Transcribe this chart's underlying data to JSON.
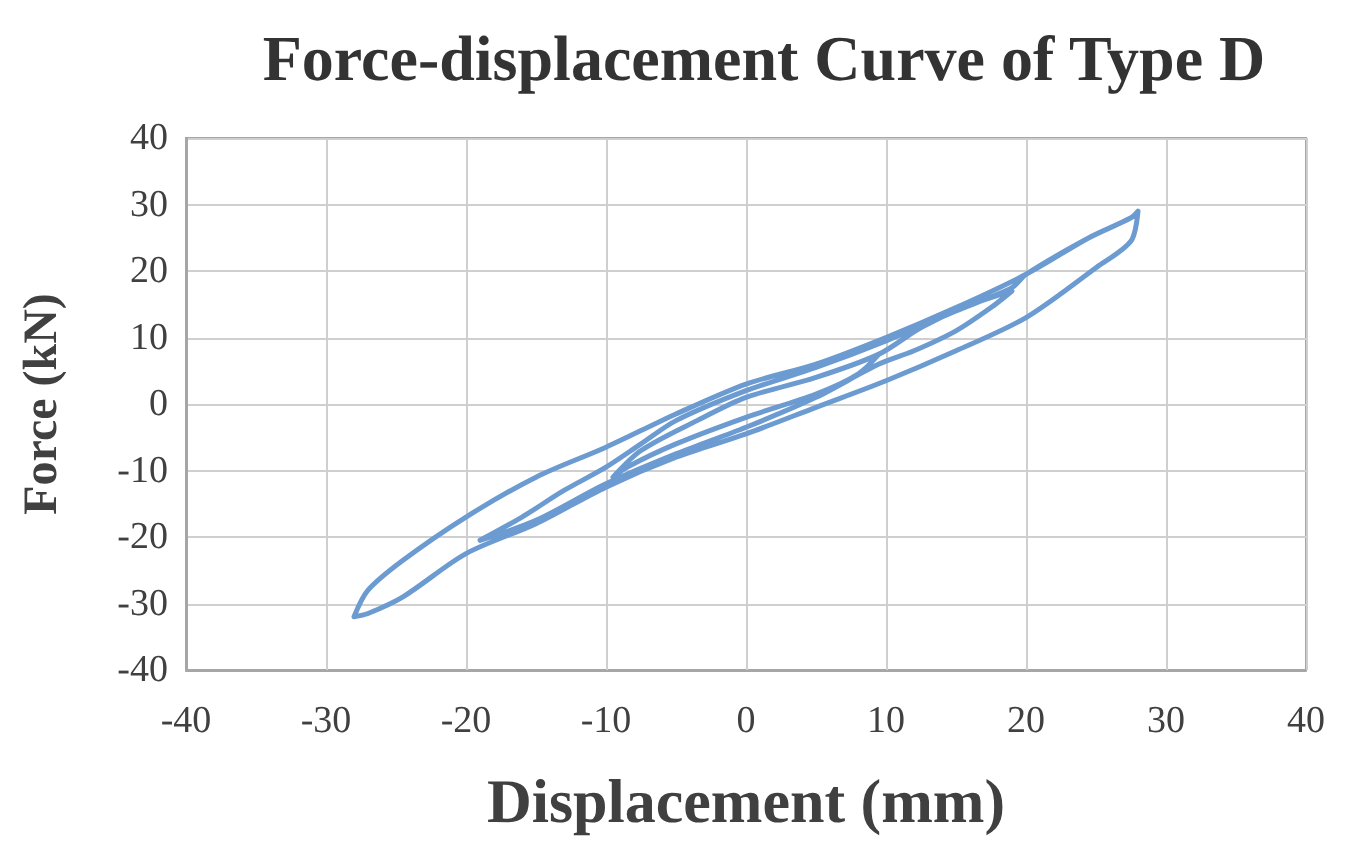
{
  "chart_data": {
    "type": "line",
    "title": "Force-displacement Curve of Type D",
    "xlabel": "Displacement (mm)",
    "ylabel": "Force (kN)",
    "x": [
      9.5,
      8,
      5,
      0,
      -5,
      -8.5,
      -9.5,
      -7.5,
      -3.5,
      0,
      5,
      9.5,
      12.5,
      15.5,
      19,
      17.5,
      15,
      12,
      9.5,
      5,
      0,
      -5,
      -10,
      -15,
      -19,
      -16,
      -13,
      -10,
      -7.5,
      -5,
      0,
      5,
      10,
      15,
      19,
      20,
      24.5,
      27.5,
      28,
      27.5,
      25,
      20,
      15,
      10,
      5,
      0,
      -5,
      -10,
      -15,
      -20,
      -24.5,
      -27,
      -28,
      -27,
      -24.5,
      -20,
      -15,
      -10,
      -5,
      0,
      5,
      10,
      15,
      20,
      24.5,
      27.5,
      28
    ],
    "series": [
      {
        "color": "#6b9bd1",
        "values": [
          7.5,
          4.5,
          1.5,
          -2,
          -6,
          -9.5,
          -11,
          -7,
          -2.5,
          1,
          4,
          7.5,
          11.5,
          14.5,
          17,
          14.5,
          11,
          8,
          6,
          1,
          -3.5,
          -7.5,
          -12,
          -17.5,
          -20.5,
          -17,
          -13,
          -9.5,
          -6,
          -2.5,
          2,
          5.5,
          9.5,
          14,
          17.5,
          19.5,
          25,
          28,
          29,
          24.5,
          20.5,
          13,
          8,
          3.5,
          -0.5,
          -4.5,
          -8,
          -12.5,
          -18,
          -22.5,
          -29,
          -31.5,
          -32,
          -28,
          -23.5,
          -17,
          -11,
          -6.5,
          -1.5,
          3,
          6,
          10,
          14.5,
          19.5,
          25,
          28,
          29
        ]
      }
    ],
    "xlim": [
      -40,
      40
    ],
    "xticks": [
      -40,
      -30,
      -20,
      -10,
      0,
      10,
      20,
      30,
      40
    ],
    "ylim": [
      -40,
      40
    ],
    "yticks": [
      -40,
      -30,
      -20,
      -10,
      0,
      10,
      20,
      30,
      40
    ],
    "grid": true,
    "marker": "none",
    "line_style": "solid"
  }
}
